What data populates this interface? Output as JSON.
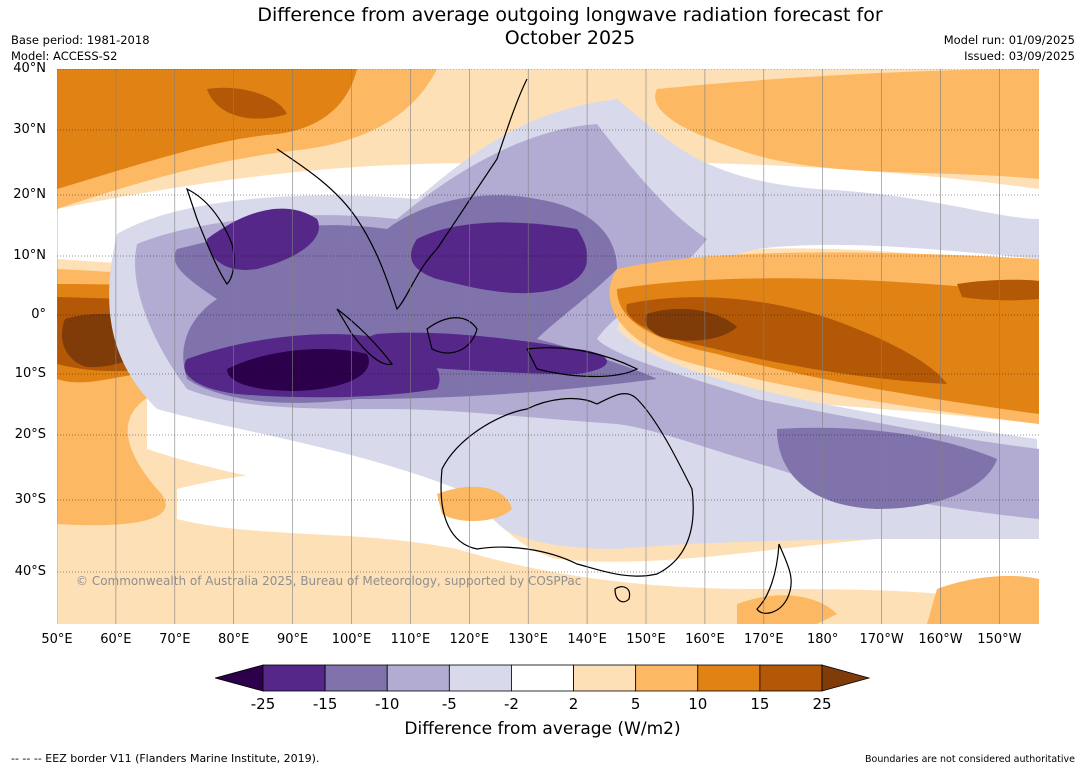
{
  "header": {
    "title": "Difference from average outgoing longwave radiation forecast for\nOctober 2025",
    "base_period": "Base period: 1981-2018",
    "model": "Model: ACCESS-S2",
    "model_run": "Model run: 01/09/2025",
    "issued": "Issued: 03/09/2025"
  },
  "map": {
    "lat_labels": [
      "40°N",
      "30°N",
      "20°N",
      "10°N",
      "0°",
      "10°S",
      "20°S",
      "30°S",
      "40°S"
    ],
    "lon_labels": [
      "50°E",
      "60°E",
      "70°E",
      "80°E",
      "90°E",
      "100°E",
      "110°E",
      "120°E",
      "130°E",
      "140°E",
      "150°E",
      "160°E",
      "170°E",
      "180°",
      "170°W",
      "160°W",
      "150°W"
    ],
    "copyright": "© Commonwealth of Australia 2025, Bureau of Meteorology, supported by COSPPac",
    "colors": {
      "lt-25": "#2d004b",
      "-25_-15": "#542788",
      "-15_-10": "#8073ac",
      "-10_-5": "#b2abd2",
      "-5_-2": "#d8daeb",
      "-2_2": "#ffffff",
      "2_5": "#fee0b6",
      "5_10": "#fdb863",
      "10_15": "#e08214",
      "15_25": "#b35806",
      "gt25": "#7f3b08"
    }
  },
  "colorbar": {
    "labels": [
      "-25",
      "-15",
      "-10",
      "-5",
      "-2",
      "2",
      "5",
      "10",
      "15",
      "25"
    ],
    "title": "Difference from average (W/m2)"
  },
  "footer": {
    "eez": "--  --  -- EEZ border V11 (Flanders Marine Institute, 2019).",
    "disclaimer": "Boundaries are not considered authoritative"
  }
}
